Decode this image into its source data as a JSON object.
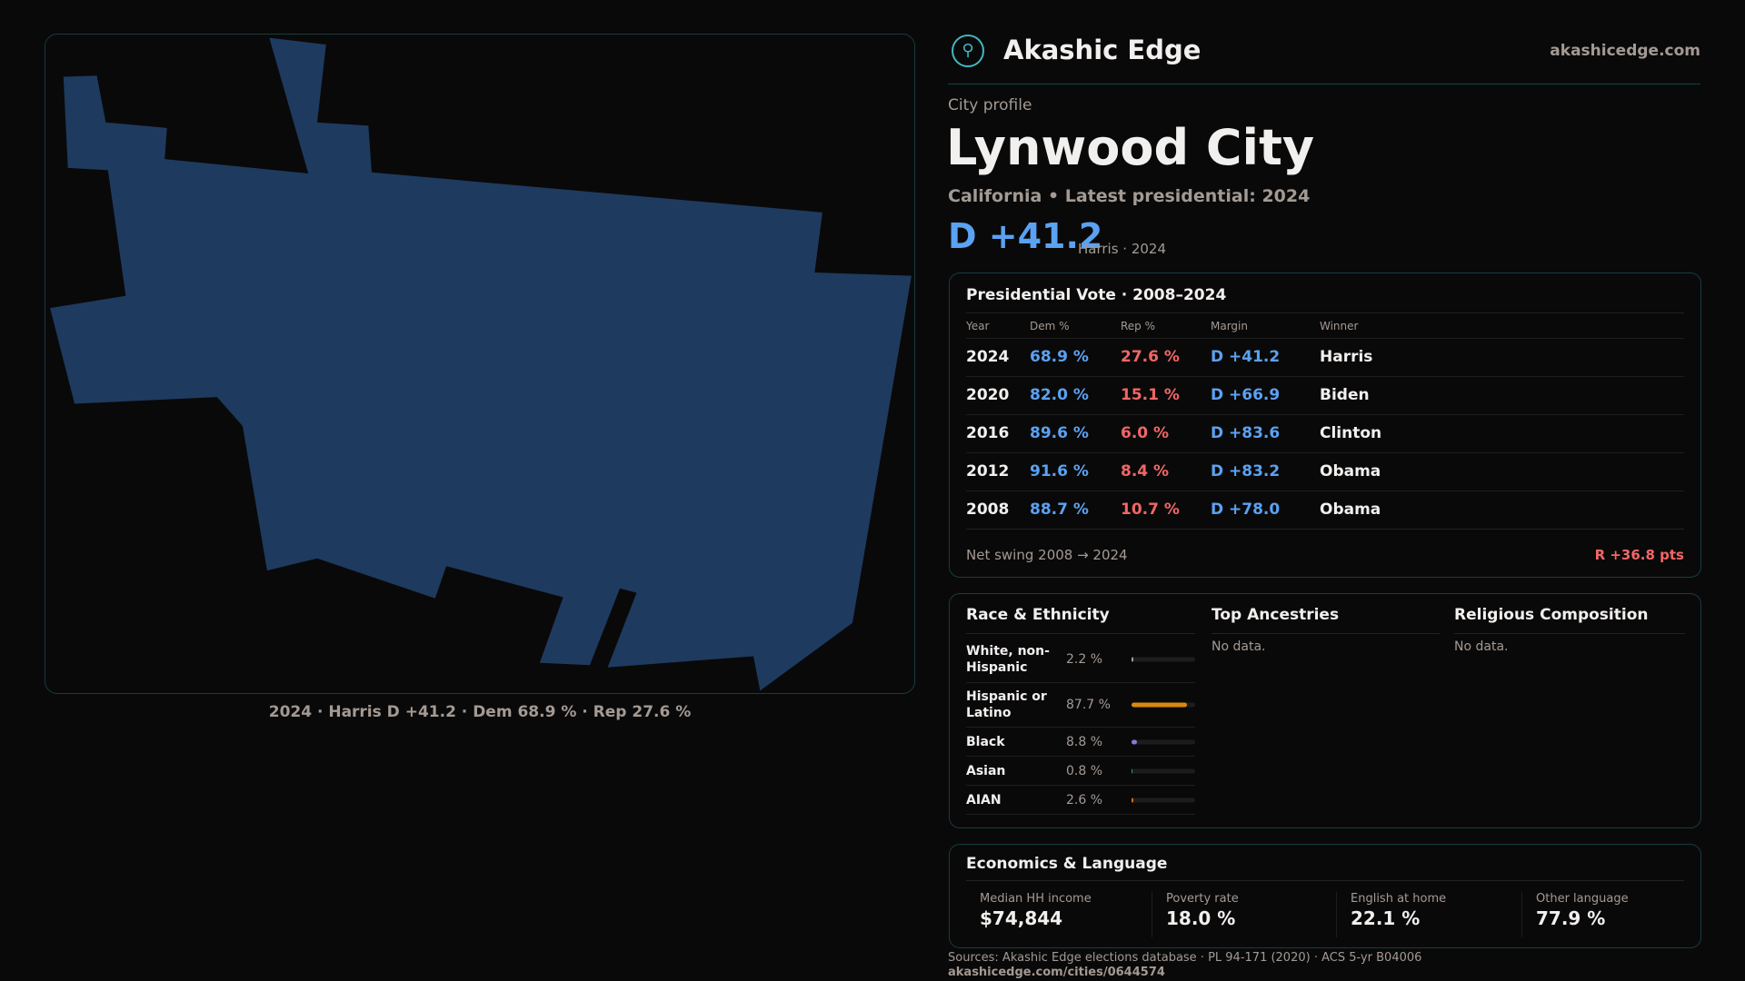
{
  "map": {
    "fill": "#1e3a5f",
    "caption": "2024 · Harris D +41.2 · Dem 68.9 % · Rep 27.6 %"
  },
  "header": {
    "brand": "Akashic Edge",
    "site": "akashicedge.com",
    "logo_icon": "compass-emblem-icon"
  },
  "profile": {
    "eyebrow": "City profile",
    "title": "Lynwood City",
    "subtitle": "California • Latest presidential: 2024",
    "margin": "D +41.2",
    "margin_note": "Harris · 2024"
  },
  "presidential": {
    "title": "Presidential Vote · 2008–2024",
    "headers": [
      "Year",
      "Dem %",
      "Rep %",
      "Margin",
      "Winner"
    ],
    "rows": [
      {
        "year": "2024",
        "dem": "68.9 %",
        "rep": "27.6 %",
        "margin": "D +41.2",
        "winner": "Harris"
      },
      {
        "year": "2020",
        "dem": "82.0 %",
        "rep": "15.1 %",
        "margin": "D +66.9",
        "winner": "Biden"
      },
      {
        "year": "2016",
        "dem": "89.6 %",
        "rep": "6.0 %",
        "margin": "D +83.6",
        "winner": "Clinton"
      },
      {
        "year": "2012",
        "dem": "91.6 %",
        "rep": "8.4 %",
        "margin": "D +83.2",
        "winner": "Obama"
      },
      {
        "year": "2008",
        "dem": "88.7 %",
        "rep": "10.7 %",
        "margin": "D +78.0",
        "winner": "Obama"
      }
    ],
    "swing_label": "Net swing 2008 → 2024",
    "swing_value": "R +36.8 pts"
  },
  "race": {
    "title": "Race & Ethnicity",
    "rows": [
      {
        "label": "White, non-Hispanic",
        "pct": "2.2 %",
        "value": 2.2,
        "color": "#9aa0b0"
      },
      {
        "label": "Hispanic or Latino",
        "pct": "87.7 %",
        "value": 87.7,
        "color": "#d88a10"
      },
      {
        "label": "Black",
        "pct": "8.8 %",
        "value": 8.8,
        "color": "#8a78d8"
      },
      {
        "label": "Asian",
        "pct": "0.8 %",
        "value": 0.8,
        "color": "#3a8a8a"
      },
      {
        "label": "AIAN",
        "pct": "2.6 %",
        "value": 2.6,
        "color": "#d86a10"
      }
    ]
  },
  "ancestries": {
    "title": "Top Ancestries",
    "empty": "No data."
  },
  "religion": {
    "title": "Religious Composition",
    "empty": "No data."
  },
  "economics": {
    "title": "Economics & Language",
    "stats": [
      {
        "label": "Median HH income",
        "value": "$74,844"
      },
      {
        "label": "Poverty rate",
        "value": "18.0 %"
      },
      {
        "label": "English at home",
        "value": "22.1 %"
      },
      {
        "label": "Other language",
        "value": "77.9 %"
      }
    ]
  },
  "footer": {
    "sources": "Sources: Akashic Edge elections database · PL 94-171 (2020) · ACS 5-yr B04006",
    "url": "akashicedge.com/cities/0644574"
  }
}
